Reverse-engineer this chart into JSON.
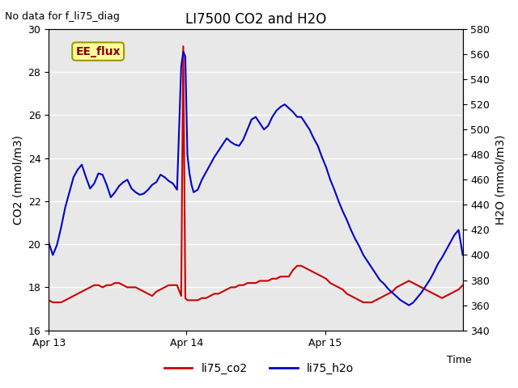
{
  "title": "LI7500 CO2 and H2O",
  "top_left_text": "No data for f_li75_diag",
  "ylabel_left": "CO2 (mmol/m3)",
  "ylabel_right": "H2O (mmol/m3)",
  "xlabel": "Time",
  "ylim_left": [
    16,
    30
  ],
  "ylim_right": [
    340,
    580
  ],
  "background_color": "#ffffff",
  "plot_bg_color": "#e8e8e8",
  "grid_color": "#ffffff",
  "annotation_box": {
    "text": "EE_flux",
    "facecolor": "#ffff99",
    "edgecolor": "#999900",
    "textcolor": "#8b0000"
  },
  "legend": [
    {
      "label": "li75_co2",
      "color": "#cc0000"
    },
    {
      "label": "li75_h2o",
      "color": "#0000cc"
    }
  ],
  "co2_color": "#cc0000",
  "h2o_color": "#0000cc",
  "co2_x": [
    0.0,
    0.04,
    0.08,
    0.12,
    0.16,
    0.2,
    0.24,
    0.28,
    0.32,
    0.36,
    0.4,
    0.44,
    0.48,
    0.52,
    0.56,
    0.6,
    0.64,
    0.68,
    0.72,
    0.76,
    0.8,
    0.84,
    0.88,
    0.92,
    0.96,
    1.0,
    1.04,
    1.08,
    1.12,
    1.16,
    1.2,
    1.24,
    1.28,
    1.3,
    1.32,
    1.34,
    1.36,
    1.38,
    1.4,
    1.44,
    1.48,
    1.52,
    1.56,
    1.6,
    1.64,
    1.68,
    1.72,
    1.76,
    1.8,
    1.84,
    1.88,
    1.92,
    1.96,
    2.0,
    2.04,
    2.08,
    2.12,
    2.16,
    2.2,
    2.24,
    2.28,
    2.32,
    2.36,
    2.4,
    2.44,
    2.48,
    2.52,
    2.56,
    2.6,
    2.64,
    2.68,
    2.72,
    2.76,
    2.8,
    2.84,
    2.88,
    2.92,
    2.96,
    3.0,
    3.04,
    3.08,
    3.12,
    3.16,
    3.2,
    3.24,
    3.28,
    3.32,
    3.36,
    3.4,
    3.44,
    3.48,
    3.52,
    3.56,
    3.6,
    3.64,
    3.68,
    3.72,
    3.76,
    3.8,
    3.84,
    3.88,
    3.92,
    3.96,
    4.0
  ],
  "co2_y": [
    17.4,
    17.3,
    17.3,
    17.3,
    17.4,
    17.5,
    17.6,
    17.7,
    17.8,
    17.9,
    18.0,
    18.1,
    18.1,
    18.0,
    18.1,
    18.1,
    18.2,
    18.2,
    18.1,
    18.0,
    18.0,
    18.0,
    17.9,
    17.8,
    17.7,
    17.6,
    17.8,
    17.9,
    18.0,
    18.1,
    18.1,
    18.1,
    17.6,
    29.2,
    17.5,
    17.4,
    17.4,
    17.4,
    17.4,
    17.4,
    17.5,
    17.5,
    17.6,
    17.7,
    17.7,
    17.8,
    17.9,
    18.0,
    18.0,
    18.1,
    18.1,
    18.2,
    18.2,
    18.2,
    18.3,
    18.3,
    18.3,
    18.4,
    18.4,
    18.5,
    18.5,
    18.5,
    18.8,
    19.0,
    19.0,
    18.9,
    18.8,
    18.7,
    18.6,
    18.5,
    18.4,
    18.2,
    18.1,
    18.0,
    17.9,
    17.7,
    17.6,
    17.5,
    17.4,
    17.3,
    17.3,
    17.3,
    17.4,
    17.5,
    17.6,
    17.7,
    17.8,
    18.0,
    18.1,
    18.2,
    18.3,
    18.2,
    18.1,
    18.0,
    17.9,
    17.8,
    17.7,
    17.6,
    17.5,
    17.6,
    17.7,
    17.8,
    17.9,
    18.1
  ],
  "h2o_x": [
    0.0,
    0.04,
    0.08,
    0.12,
    0.16,
    0.2,
    0.24,
    0.28,
    0.32,
    0.36,
    0.4,
    0.44,
    0.48,
    0.52,
    0.56,
    0.6,
    0.64,
    0.68,
    0.72,
    0.76,
    0.8,
    0.84,
    0.88,
    0.92,
    0.96,
    1.0,
    1.04,
    1.08,
    1.12,
    1.16,
    1.2,
    1.24,
    1.28,
    1.3,
    1.32,
    1.34,
    1.36,
    1.38,
    1.4,
    1.44,
    1.48,
    1.52,
    1.56,
    1.6,
    1.64,
    1.68,
    1.72,
    1.76,
    1.8,
    1.84,
    1.88,
    1.92,
    1.96,
    2.0,
    2.04,
    2.08,
    2.12,
    2.16,
    2.2,
    2.24,
    2.28,
    2.32,
    2.36,
    2.4,
    2.44,
    2.48,
    2.52,
    2.56,
    2.6,
    2.64,
    2.68,
    2.72,
    2.76,
    2.8,
    2.84,
    2.88,
    2.92,
    2.96,
    3.0,
    3.04,
    3.08,
    3.12,
    3.16,
    3.2,
    3.24,
    3.28,
    3.32,
    3.36,
    3.4,
    3.44,
    3.48,
    3.52,
    3.56,
    3.6,
    3.64,
    3.68,
    3.72,
    3.76,
    3.8,
    3.84,
    3.88,
    3.92,
    3.96,
    4.0
  ],
  "h2o_y": [
    410,
    400,
    408,
    422,
    438,
    450,
    462,
    468,
    472,
    462,
    453,
    457,
    465,
    464,
    456,
    446,
    450,
    455,
    458,
    460,
    453,
    450,
    448,
    449,
    452,
    456,
    458,
    464,
    462,
    459,
    457,
    452,
    550,
    562,
    558,
    480,
    465,
    456,
    450,
    452,
    460,
    466,
    472,
    478,
    483,
    488,
    493,
    490,
    488,
    487,
    492,
    500,
    508,
    510,
    505,
    500,
    503,
    510,
    515,
    518,
    520,
    517,
    514,
    510,
    510,
    505,
    500,
    493,
    487,
    478,
    470,
    460,
    452,
    443,
    435,
    428,
    420,
    413,
    407,
    400,
    395,
    390,
    385,
    380,
    377,
    373,
    370,
    367,
    364,
    362,
    360,
    362,
    366,
    370,
    375,
    380,
    386,
    393,
    398,
    404,
    410,
    416,
    420,
    400
  ],
  "xlim": [
    0,
    4.0
  ],
  "yticks_left": [
    16,
    18,
    20,
    22,
    24,
    26,
    28,
    30
  ],
  "yticks_right": [
    340,
    360,
    380,
    400,
    420,
    440,
    460,
    480,
    500,
    520,
    540,
    560,
    580
  ],
  "xtick_pos": [
    0.0,
    1.33,
    2.67
  ],
  "xtick_labels": [
    "Apr 13",
    "Apr 14",
    "Apr 15"
  ]
}
